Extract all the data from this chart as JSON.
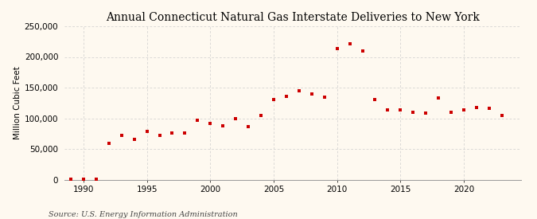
{
  "title": "Annual Connecticut Natural Gas Interstate Deliveries to New York",
  "ylabel": "Million Cubic Feet",
  "source": "Source: U.S. Energy Information Administration",
  "background_color": "#fef9f0",
  "dot_color": "#cc0000",
  "years": [
    1989,
    1990,
    1991,
    1992,
    1993,
    1994,
    1995,
    1996,
    1997,
    1998,
    1999,
    2000,
    2001,
    2002,
    2003,
    2004,
    2005,
    2006,
    2007,
    2008,
    2009,
    2010,
    2011,
    2012,
    2013,
    2014,
    2015,
    2016,
    2017,
    2018,
    2019,
    2020,
    2021,
    2022,
    2023
  ],
  "values": [
    500,
    500,
    500,
    59000,
    72000,
    66000,
    79000,
    72000,
    76000,
    76000,
    97000,
    92000,
    88000,
    100000,
    87000,
    105000,
    130000,
    136000,
    145000,
    140000,
    135000,
    213000,
    222000,
    210000,
    130000,
    113000,
    113000,
    110000,
    108000,
    133000,
    110000,
    113000,
    118000,
    116000,
    105000
  ],
  "ylim": [
    0,
    250000
  ],
  "xlim": [
    1988.5,
    2024.5
  ],
  "yticks": [
    0,
    50000,
    100000,
    150000,
    200000,
    250000
  ],
  "xticks": [
    1990,
    1995,
    2000,
    2005,
    2010,
    2015,
    2020
  ],
  "grid_color": "#cccccc",
  "title_fontsize": 10,
  "ylabel_fontsize": 7.5,
  "tick_fontsize": 7.5,
  "source_fontsize": 7
}
